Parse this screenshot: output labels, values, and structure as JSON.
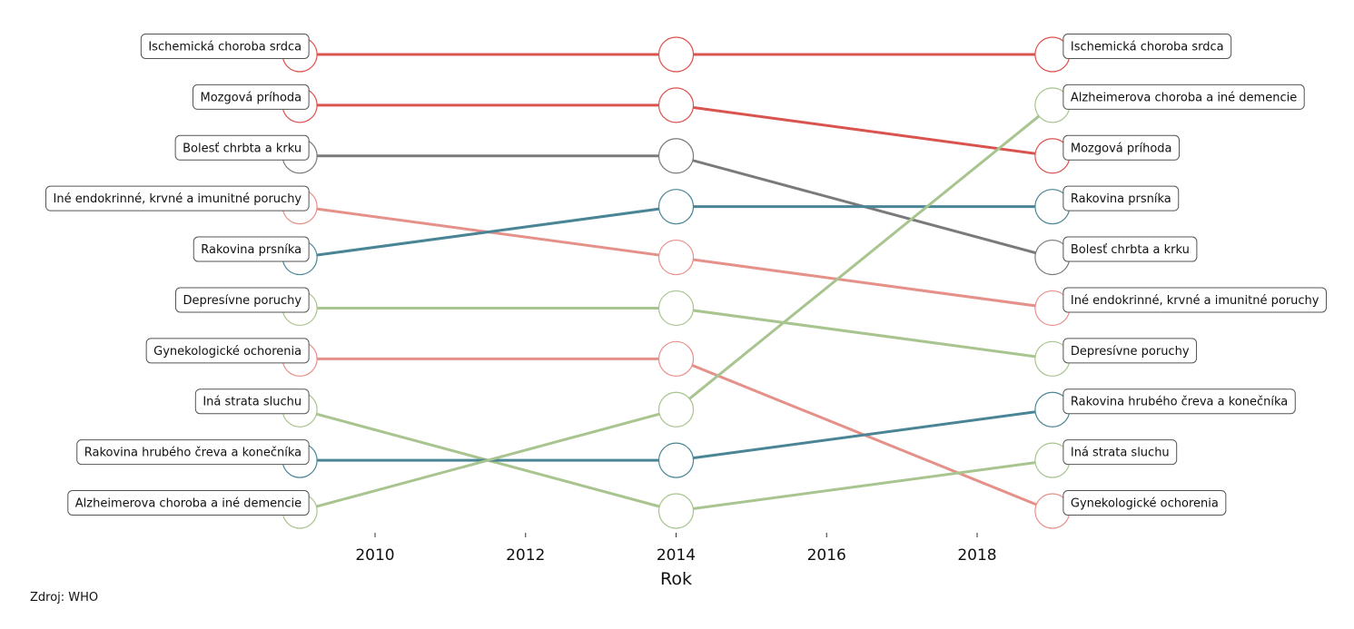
{
  "chart_data": {
    "type": "bump",
    "x": [
      2009,
      2014,
      2019
    ],
    "xlabel": "Rok",
    "xticks": [
      2010,
      2012,
      2014,
      2016,
      2018
    ],
    "ylabel": "",
    "rank_direction": "1 at top",
    "label_positions": {
      "first": "left",
      "last": "right"
    },
    "grid": false,
    "series": [
      {
        "name": "Ischemická choroba srdca",
        "color": "#d9534f",
        "ranks": [
          1,
          1,
          1
        ]
      },
      {
        "name": "Mozgová príhoda",
        "color": "#d9534f",
        "ranks": [
          2,
          2,
          3
        ]
      },
      {
        "name": "Bolesť chrbta a krku",
        "color": "#7a7a7a",
        "ranks": [
          3,
          3,
          5
        ]
      },
      {
        "name": "Iné endokrinné, krvné a imunitné poruchy",
        "color": "#e5918a",
        "ranks": [
          4,
          5,
          6
        ]
      },
      {
        "name": "Rakovina prsníka",
        "color": "#4a8596",
        "ranks": [
          5,
          4,
          4
        ]
      },
      {
        "name": "Depresívne poruchy",
        "color": "#a8c48f",
        "ranks": [
          6,
          6,
          7
        ]
      },
      {
        "name": "Gynekologické ochorenia",
        "color": "#e5918a",
        "ranks": [
          7,
          7,
          10
        ]
      },
      {
        "name": "Iná strata sluchu",
        "color": "#a8c48f",
        "ranks": [
          8,
          10,
          9
        ]
      },
      {
        "name": "Rakovina hrubého čreva a konečníka",
        "color": "#4a8596",
        "ranks": [
          9,
          9,
          8
        ]
      },
      {
        "name": "Alzheimerova choroba a iné demencie",
        "color": "#a8c48f",
        "ranks": [
          10,
          8,
          2
        ]
      }
    ]
  },
  "source": "Zdroj: WHO"
}
